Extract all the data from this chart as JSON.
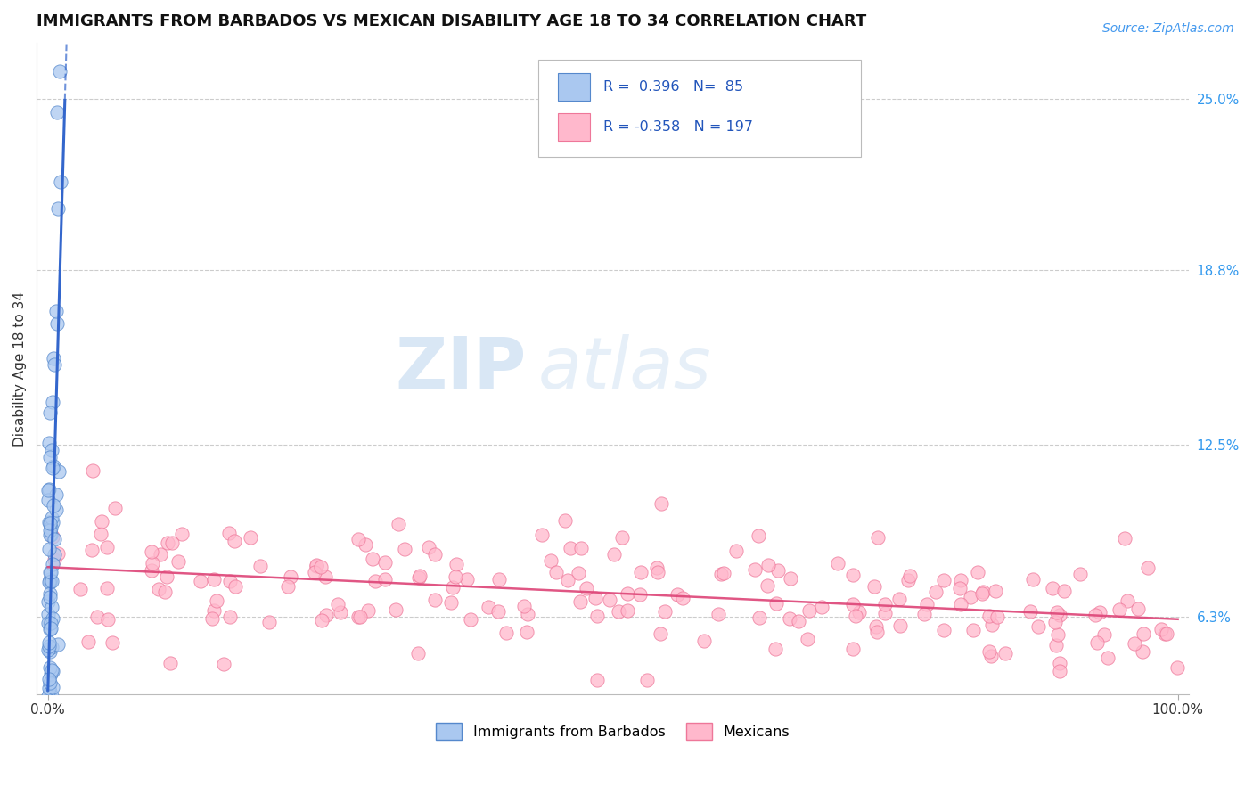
{
  "title": "IMMIGRANTS FROM BARBADOS VS MEXICAN DISABILITY AGE 18 TO 34 CORRELATION CHART",
  "source": "Source: ZipAtlas.com",
  "ylabel": "Disability Age 18 to 34",
  "x_min": 0.0,
  "x_max": 100.0,
  "y_min": 3.5,
  "y_max": 27.0,
  "x_tick_labels": [
    "0.0%",
    "100.0%"
  ],
  "y_tick_positions": [
    6.3,
    12.5,
    18.8,
    25.0
  ],
  "y_tick_labels": [
    "6.3%",
    "12.5%",
    "18.8%",
    "25.0%"
  ],
  "barbados_color": "#aac8f0",
  "barbados_edge": "#5588cc",
  "mexican_color": "#ffb8cc",
  "mexican_edge": "#ee7799",
  "barbados_R": 0.396,
  "barbados_N": 85,
  "mexican_R": -0.358,
  "mexican_N": 197,
  "watermark_zip": "ZIP",
  "watermark_atlas": "atlas",
  "background_color": "#ffffff",
  "grid_color": "#cccccc",
  "title_fontsize": 13,
  "axis_label_fontsize": 11,
  "tick_fontsize": 11,
  "legend_label_barbados": "Immigrants from Barbados",
  "legend_label_mexican": "Mexicans",
  "barbados_trend_color": "#3366cc",
  "mexican_trend_color": "#dd4477",
  "seed": 7
}
